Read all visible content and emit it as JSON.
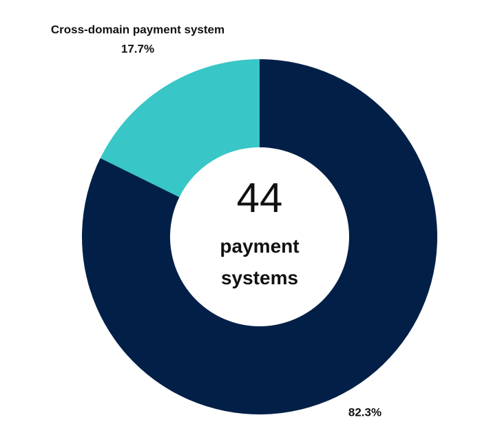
{
  "chart_data": {
    "type": "donut",
    "categories": [
      null,
      "Cross-domain payment system"
    ],
    "values": [
      82.3,
      17.7
    ],
    "value_labels": [
      "82.3%",
      "17.7%"
    ],
    "colors": [
      "#022047",
      "#38c6c6"
    ],
    "center_value": 44,
    "center_label": "payment systems"
  }
}
